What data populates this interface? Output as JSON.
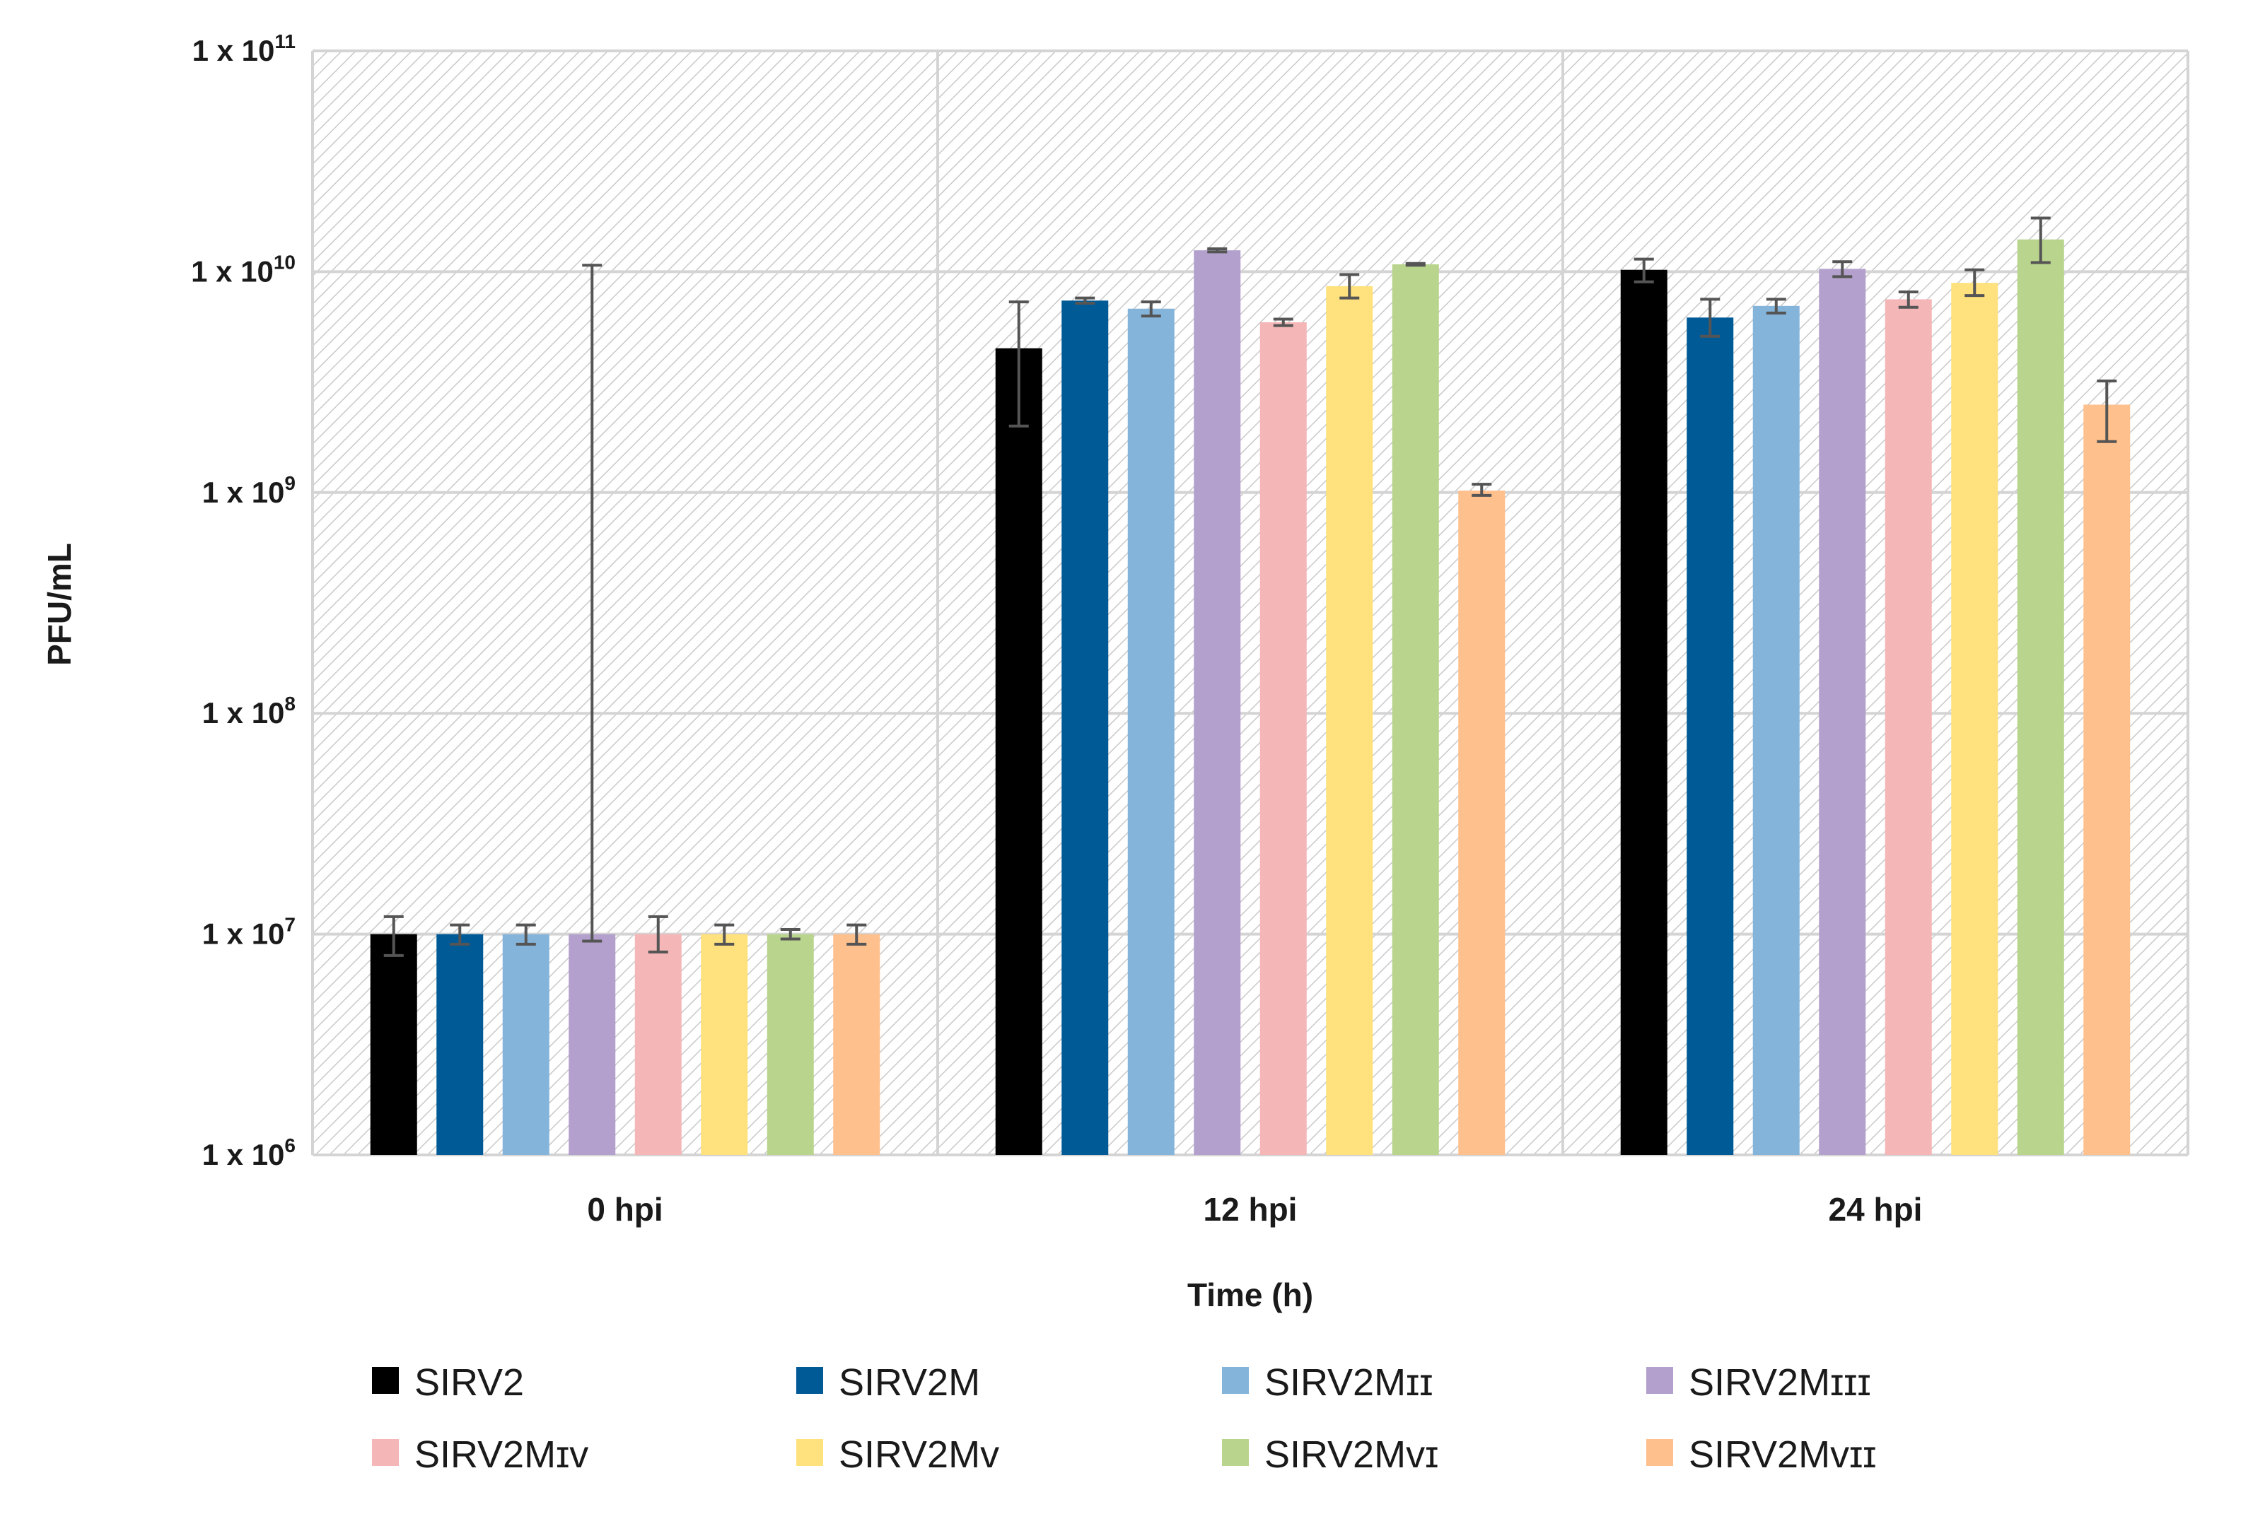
{
  "chart_data": {
    "type": "bar",
    "title": "",
    "xlabel": "Time (h)",
    "ylabel": "PFU/mL",
    "yscale": "log",
    "ylim": [
      1000000,
      100000000000
    ],
    "yticks": [
      {
        "value": 1000000,
        "base": "1 x 10",
        "exp": "6"
      },
      {
        "value": 10000000,
        "base": "1 x 10",
        "exp": "7"
      },
      {
        "value": 100000000,
        "base": "1 x 10",
        "exp": "8"
      },
      {
        "value": 1000000000,
        "base": "1 x 10",
        "exp": "9"
      },
      {
        "value": 10000000000,
        "base": "1 x 10",
        "exp": "10"
      },
      {
        "value": 100000000000,
        "base": "1 x 10",
        "exp": "11"
      }
    ],
    "categories": [
      "0 hpi",
      "12 hpi",
      "24 hpi"
    ],
    "grid": true,
    "legend_position": "bottom",
    "series": [
      {
        "name": "SIRV2",
        "color": "#000000",
        "values": [
          10000000.0,
          4500000000.0,
          10200000000.0
        ],
        "err_low": [
          8000000.0,
          2000000000.0,
          9000000000.0
        ],
        "err_high": [
          12000000.0,
          7300000000.0,
          11400000000.0
        ]
      },
      {
        "name": "SIRV2M",
        "color": "#005a96",
        "values": [
          10000000.0,
          7400000000.0,
          6200000000.0
        ],
        "err_low": [
          9000000.0,
          7200000000.0,
          5100000000.0
        ],
        "err_high": [
          11000000.0,
          7600000000.0,
          7500000000.0
        ]
      },
      {
        "name": "SIRV2Mɪɪ",
        "color": "#85b4da",
        "values": [
          10000000.0,
          6800000000.0,
          7000000000.0
        ],
        "err_low": [
          9000000.0,
          6300000000.0,
          6500000000.0
        ],
        "err_high": [
          11000000.0,
          7300000000.0,
          7500000000.0
        ]
      },
      {
        "name": "SIRV2Mɪɪɪ",
        "color": "#b3a0cd",
        "values": [
          10000000.0,
          12500000000.0,
          10300000000.0
        ],
        "err_low": [
          9300000.0,
          12300000000.0,
          9500000000.0
        ],
        "err_high": [
          10700000000.0,
          12700000000.0,
          11100000000.0
        ]
      },
      {
        "name": "SIRV2Mɪv",
        "color": "#f4b6b6",
        "values": [
          10000000.0,
          5900000000.0,
          7500000000.0
        ],
        "err_low": [
          8300000.0,
          5700000000.0,
          6900000000.0
        ],
        "err_high": [
          12000000.0,
          6100000000.0,
          8100000000.0
        ]
      },
      {
        "name": "SIRV2Mv",
        "color": "#ffe17e",
        "values": [
          10000000.0,
          8600000000.0,
          8900000000.0
        ],
        "err_low": [
          9000000.0,
          7600000000.0,
          7800000000.0
        ],
        "err_high": [
          11000000.0,
          9700000000.0,
          10200000000.0
        ]
      },
      {
        "name": "SIRV2Mvɪ",
        "color": "#b9d48d",
        "values": [
          10000000.0,
          10800000000.0,
          14000000000.0
        ],
        "err_low": [
          9500000.0,
          10700000000.0,
          11000000000.0
        ],
        "err_high": [
          10500000.0,
          10900000000.0,
          17500000000.0
        ]
      },
      {
        "name": "SIRV2Mvɪɪ",
        "color": "#fec08d",
        "values": [
          10000000.0,
          1020000000.0,
          2500000000.0
        ],
        "err_low": [
          9000000.0,
          970000000.0,
          1700000000.0
        ],
        "err_high": [
          11000000.0,
          1090000000.0,
          3200000000.0
        ]
      }
    ]
  }
}
